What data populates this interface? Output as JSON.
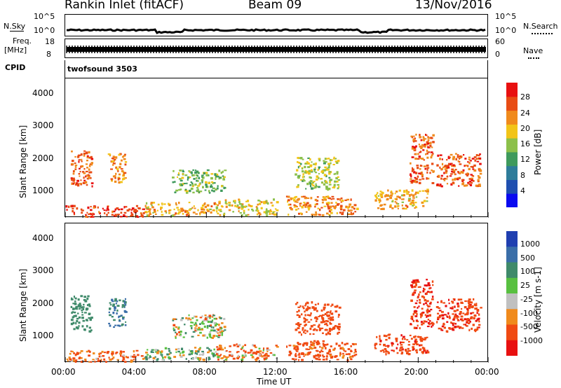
{
  "header": {
    "station": "Rankin Inlet (fitACF)",
    "beam": "Beam 09",
    "date": "13/Nov/2016"
  },
  "noise_panel": {
    "left_label": "N.Sky",
    "right_label": "N.Search",
    "left_ticks": [
      "10^5",
      "10^0"
    ],
    "right_ticks": [
      "10^5",
      "10^0"
    ]
  },
  "freq_panel": {
    "left_label_line1": "Freq.",
    "left_label_line2": "[MHz]",
    "left_ticks": [
      "18",
      "8"
    ],
    "right_label": "Nave",
    "right_ticks": [
      "60",
      "0"
    ]
  },
  "cpid_panel": {
    "label": "CPID",
    "value": "twofsound 3503"
  },
  "colors": {
    "power_scale": [
      "#0a0af0",
      "#1f4fb0",
      "#2e7c9a",
      "#3f9a5c",
      "#8cc04a",
      "#f2c418",
      "#f08a1c",
      "#e84c14",
      "#e81010"
    ],
    "velocity_scale": [
      "#e81010",
      "#f04a12",
      "#f08a1c",
      "#c0c0c0",
      "#58c040",
      "#3f8a6a",
      "#3a6ea8",
      "#1f3fb0"
    ]
  },
  "chart_data": [
    {
      "type": "heatmap",
      "title": "",
      "xlabel": "",
      "ylabel": "Slant Range [km]",
      "xlim": [
        "00:00",
        "24:00"
      ],
      "ylim": [
        200,
        4500
      ],
      "x_ticks": [
        "00:00",
        "04:00",
        "08:00",
        "12:00",
        "16:00",
        "20:00",
        "00:00"
      ],
      "y_ticks": [
        1000,
        2000,
        3000,
        4000
      ],
      "colorbar": {
        "label": "Power [dB]",
        "ticks": [
          "4",
          "8",
          "12",
          "16",
          "20",
          "24",
          "28"
        ],
        "range": [
          0,
          30
        ]
      },
      "echo_regions": [
        {
          "t_start": 0.3,
          "t_end": 1.5,
          "r_low": 1200,
          "r_high": 2300,
          "power": 24
        },
        {
          "t_start": 0.0,
          "t_end": 4.5,
          "r_low": 250,
          "r_high": 600,
          "power": 26
        },
        {
          "t_start": 2.4,
          "t_end": 3.4,
          "r_low": 1300,
          "r_high": 2200,
          "power": 22
        },
        {
          "t_start": 4.5,
          "t_end": 8.5,
          "r_low": 300,
          "r_high": 700,
          "power": 20
        },
        {
          "t_start": 6.0,
          "t_end": 9.0,
          "r_low": 1000,
          "r_high": 1700,
          "power": 14
        },
        {
          "t_start": 8.5,
          "t_end": 12.0,
          "r_low": 300,
          "r_high": 800,
          "power": 18
        },
        {
          "t_start": 12.5,
          "t_end": 16.5,
          "r_low": 300,
          "r_high": 900,
          "power": 22
        },
        {
          "t_start": 13.0,
          "t_end": 15.5,
          "r_low": 1100,
          "r_high": 2100,
          "power": 16
        },
        {
          "t_start": 17.5,
          "t_end": 20.5,
          "r_low": 500,
          "r_high": 1100,
          "power": 20
        },
        {
          "t_start": 19.5,
          "t_end": 20.8,
          "r_low": 1300,
          "r_high": 2800,
          "power": 24
        },
        {
          "t_start": 21.0,
          "t_end": 23.5,
          "r_low": 1200,
          "r_high": 2200,
          "power": 25
        }
      ]
    },
    {
      "type": "heatmap",
      "title": "",
      "xlabel": "Time UT",
      "ylabel": "Slant Range [km]",
      "xlim": [
        "00:00",
        "24:00"
      ],
      "ylim": [
        200,
        4500
      ],
      "x_ticks": [
        "00:00",
        "04:00",
        "08:00",
        "12:00",
        "16:00",
        "20:00",
        "00:00"
      ],
      "y_ticks": [
        1000,
        2000,
        3000,
        4000
      ],
      "colorbar": {
        "label": "Velocity [m s-1]",
        "ticks": [
          "1000",
          "500",
          "100",
          "25",
          "-25",
          "-100",
          "-500",
          "-1000"
        ],
        "range": [
          -1000,
          1000
        ]
      },
      "echo_regions": [
        {
          "t_start": 0.3,
          "t_end": 1.5,
          "r_low": 1200,
          "r_high": 2300,
          "velocity": 300
        },
        {
          "t_start": 0.0,
          "t_end": 4.5,
          "r_low": 250,
          "r_high": 600,
          "velocity": -150
        },
        {
          "t_start": 2.4,
          "t_end": 3.4,
          "r_low": 1300,
          "r_high": 2200,
          "velocity": 500
        },
        {
          "t_start": 4.5,
          "t_end": 8.5,
          "r_low": 300,
          "r_high": 700,
          "velocity": 80
        },
        {
          "t_start": 6.0,
          "t_end": 9.0,
          "r_low": 1000,
          "r_high": 1700,
          "velocity": 0
        },
        {
          "t_start": 8.5,
          "t_end": 12.0,
          "r_low": 300,
          "r_high": 800,
          "velocity": -100
        },
        {
          "t_start": 12.5,
          "t_end": 16.5,
          "r_low": 300,
          "r_high": 900,
          "velocity": -200
        },
        {
          "t_start": 13.0,
          "t_end": 15.5,
          "r_low": 1100,
          "r_high": 2100,
          "velocity": -300
        },
        {
          "t_start": 17.5,
          "t_end": 20.5,
          "r_low": 500,
          "r_high": 1100,
          "velocity": -400
        },
        {
          "t_start": 19.5,
          "t_end": 20.8,
          "r_low": 1300,
          "r_high": 2800,
          "velocity": -500
        },
        {
          "t_start": 21.0,
          "t_end": 23.5,
          "r_low": 1200,
          "r_high": 2200,
          "velocity": -450
        }
      ]
    }
  ]
}
